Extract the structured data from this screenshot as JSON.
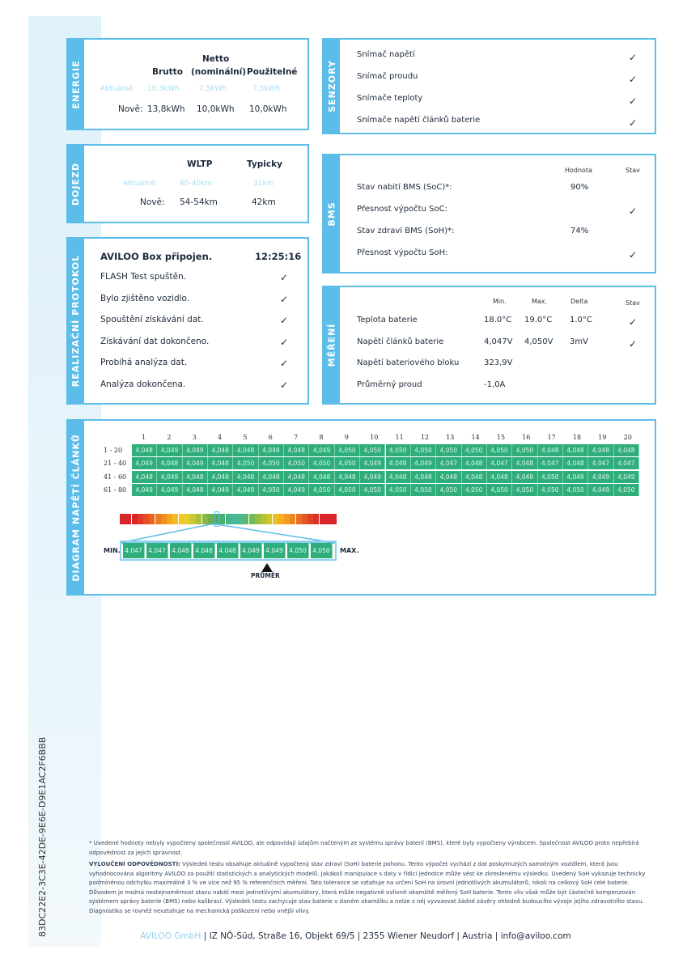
{
  "energie": {
    "label": "ENERGIE",
    "headers": [
      "Brutto",
      "Netto",
      "(nominální)",
      "Použitelné"
    ],
    "rows": [
      {
        "label": "Aktuálně:",
        "values": [
          "10,3kWh",
          "7,5kWh",
          "7,5kWh"
        ]
      },
      {
        "label": "Nově:",
        "values": [
          "13,8kWh",
          "10,0kWh",
          "10,0kWh"
        ]
      }
    ]
  },
  "dojezd": {
    "label": "DOJEZD",
    "headers": [
      "WLTP",
      "Typicky"
    ],
    "rows": [
      {
        "label": "Aktuálně:",
        "values": [
          "40-40km",
          "31km"
        ]
      },
      {
        "label": "Nově:",
        "values": [
          "54-54km",
          "42km"
        ]
      }
    ]
  },
  "protokol": {
    "label": "REALIZAČNÍ PROTOKOL",
    "title": "AVILOO Box připojen.",
    "time": "12:25:16",
    "items": [
      "FLASH Test spuštěn.",
      "Bylo zjištěno vozidlo.",
      "Spouštění získávání dat.",
      "Získávání dat dokončeno.",
      "Probíhá analýza dat.",
      "Analýza dokončena."
    ]
  },
  "senzory": {
    "label": "SENZORY",
    "items": [
      "Snímač napětí",
      "Snímač proudu",
      "Snímače teploty",
      "Snímače napětí článků baterie"
    ]
  },
  "bms": {
    "label": "BMS",
    "headers": [
      "Hodnota",
      "Stav"
    ],
    "rows": [
      {
        "label": "Stav nabití BMS (SoC)*:",
        "value": "90%",
        "ok": false
      },
      {
        "label": "Přesnost výpočtu SoC:",
        "value": "",
        "ok": true
      },
      {
        "label": "Stav zdraví BMS (SoH)*:",
        "value": "74%",
        "ok": false
      },
      {
        "label": "Přesnost výpočtu SoH:",
        "value": "",
        "ok": true
      }
    ]
  },
  "mereni": {
    "label": "MĚŘENÍ",
    "headers": [
      "Min.",
      "Max.",
      "Delta",
      "Stav"
    ],
    "rows": [
      {
        "label": "Teplota baterie",
        "values": [
          "18.0°C",
          "19.0°C",
          "1.0°C"
        ],
        "ok": true
      },
      {
        "label": "Napětí článků baterie",
        "values": [
          "4,047V",
          "4,050V",
          "3mV"
        ],
        "ok": true
      },
      {
        "label": "Napětí bateriového bloku",
        "values": [
          "323,9V",
          "",
          ""
        ],
        "ok": false
      },
      {
        "label": "Průměrný proud",
        "values": [
          "-1,0A",
          "",
          ""
        ],
        "ok": false
      }
    ]
  },
  "diagram": {
    "label": "DIAGRAM NAPĚTÍ ČLÁNKŮ",
    "columns": [
      "1",
      "2",
      "3",
      "4",
      "5",
      "6",
      "7",
      "8",
      "9",
      "10",
      "11",
      "12",
      "13",
      "14",
      "15",
      "16",
      "17",
      "18",
      "19",
      "20"
    ],
    "row_labels": [
      "1 - 20",
      "21 - 40",
      "41 - 60",
      "61 - 80"
    ],
    "cells": [
      [
        "4,048",
        "4,049",
        "4,049",
        "4,048",
        "4,048",
        "4,048",
        "4,048",
        "4,049",
        "4,050",
        "4,050",
        "4,050",
        "4,050",
        "4,050",
        "4,050",
        "4,050",
        "4,050",
        "4,048",
        "4,048",
        "4,048",
        "4,048"
      ],
      [
        "4,049",
        "4,048",
        "4,049",
        "4,048",
        "4,050",
        "4,050",
        "4,050",
        "4,050",
        "4,050",
        "4,049",
        "4,048",
        "4,049",
        "4,047",
        "4,048",
        "4,047",
        "4,048",
        "4,047",
        "4,048",
        "4,047",
        "4,047"
      ],
      [
        "4,048",
        "4,049",
        "4,048",
        "4,048",
        "4,048",
        "4,048",
        "4,048",
        "4,048",
        "4,048",
        "4,049",
        "4,048",
        "4,048",
        "4,048",
        "4,048",
        "4,048",
        "4,048",
        "4,050",
        "4,049",
        "4,049",
        "4,049"
      ],
      [
        "4,049",
        "4,049",
        "4,048",
        "4,049",
        "4,049",
        "4,050",
        "4,049",
        "4,050",
        "4,050",
        "4,050",
        "4,050",
        "4,050",
        "4,050",
        "4,050",
        "4,050",
        "4,050",
        "4,050",
        "4,050",
        "4,049",
        "4,050"
      ]
    ],
    "scale": [
      "4.047",
      "4.047",
      "4.048",
      "4.048",
      "4.048",
      "4.049",
      "4.049",
      "4.050",
      "4.050"
    ],
    "min_label": "MIN.",
    "max_label": "MAX.",
    "avg_label": "PRŮMĚR"
  },
  "document_id": "83DC22E2-3C3E-42DE-9E6E-D9E1AC2F6BBB",
  "footnote": "* Uvedené hodnoty nebyly vypočteny společností AVILOO, ale odpovídají údajům načteným ze systému správy baterií (BMS), které byly vypočteny výrobcem. Společnost AVILOO proto nepřebírá odpovědnost za jejich správnost.",
  "disclaimer_title": "VYLOUČENÍ ODPOVĚDNOSTI:",
  "disclaimer": "Výsledek testu obsahuje aktuálně vypočtený stav zdraví (SoH) baterie pohonu. Tento výpočet vychází z dat poskytnutých samotným vozidlem, která jsou vyhodnocována algoritmy AVILOO za použití statistických a analytických modelů. Jakákoli manipulace s daty v řídicí jednotce může vést ke zkreslenému výsledku. Uvedený SoH vykazuje technicky podmíněnou odchylku maximálně 3 % ve více než 95 % referenčních měření. Tato tolerance se vztahuje na určení SoH na úrovni jednotlivých akumulátorů, nikoli na celkový SoH celé baterie. Důvodem je možná nestejnoměrnost stavu nabití mezi jednotlivými akumulátory, která může negativně ovlivnit okamžitě měřený SoH baterie. Tento vliv však může být částečně kompenzován systémem správy baterie (BMS) nebo kalibrací. Výsledek testu zachycuje stav baterie v daném okamžiku a nelze z něj vyvozovat žádné závěry ohledně budoucího vývoje jejího zdravotního stavu. Diagnostika se rovněž nevztahuje na mechanická poškození nebo vnější vlivy.",
  "footer": {
    "company": "AVILOO GmbH",
    "address": "| IZ NÖ-Süd, Straße 16, Objekt 69/5 | 2355 Wiener Neudorf | Austria | info@aviloo.com"
  },
  "colors": {
    "accent": "#5bbde8",
    "cell": "#2fae7c",
    "muted": "#a9dcf3"
  },
  "icons": {
    "check": "check-icon"
  }
}
